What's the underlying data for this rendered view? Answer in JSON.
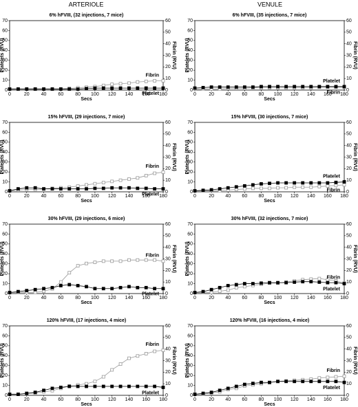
{
  "headers": [
    "ARTERIOLE",
    "VENULE"
  ],
  "chart_data": [
    {
      "type": "scatter",
      "title": "6% hFVIII, (32 injections, 7 mice)",
      "xlabel": "Secs",
      "ylabel": "Platelets (RVU)",
      "y2label": "Fibrin (RVU)",
      "x": [
        0,
        10,
        20,
        30,
        40,
        50,
        60,
        70,
        80,
        90,
        100,
        110,
        120,
        130,
        140,
        150,
        160,
        170,
        180
      ],
      "xlim": [
        0,
        180
      ],
      "xticks": [
        0,
        20,
        40,
        60,
        80,
        100,
        120,
        140,
        160,
        180
      ],
      "ylim": [
        0,
        70
      ],
      "yticks": [
        0,
        10,
        20,
        30,
        40,
        50,
        60,
        70
      ],
      "y2lim": [
        0,
        60
      ],
      "y2ticks": [
        0,
        10,
        20,
        30,
        40,
        50,
        60
      ],
      "series": [
        {
          "name": "Fibrin",
          "color": "#9a9a9a",
          "marker": "open",
          "axis": "y2",
          "values": [
            1,
            1,
            1,
            1,
            1,
            1,
            1,
            1.5,
            2,
            2.5,
            3,
            4,
            5,
            5.5,
            6,
            7,
            7.5,
            8,
            8
          ]
        },
        {
          "name": "Platelet",
          "color": "#000000",
          "marker": "filled",
          "values": [
            1,
            1,
            1,
            1,
            1,
            1,
            1,
            1,
            1,
            1.5,
            2,
            2,
            2,
            2,
            2,
            2,
            2,
            2,
            2
          ]
        }
      ]
    },
    {
      "type": "scatter",
      "title": "6% hFVIII, (35 injections, 7 mice)",
      "xlabel": "Secs",
      "ylabel": "Platelets (RVU)",
      "y2label": "Fibrin (RVU)",
      "x": [
        0,
        10,
        20,
        30,
        40,
        50,
        60,
        70,
        80,
        90,
        100,
        110,
        120,
        130,
        140,
        150,
        160,
        170,
        180
      ],
      "xlim": [
        0,
        180
      ],
      "xticks": [
        0,
        20,
        40,
        60,
        80,
        100,
        120,
        140,
        160,
        180
      ],
      "ylim": [
        0,
        70
      ],
      "yticks": [
        0,
        10,
        20,
        30,
        40,
        50,
        60,
        70
      ],
      "y2lim": [
        0,
        60
      ],
      "y2ticks": [
        0,
        10,
        20,
        30,
        40,
        50,
        60
      ],
      "series": [
        {
          "name": "Fibrin",
          "color": "#9a9a9a",
          "marker": "open",
          "axis": "y2",
          "values": [
            1,
            1,
            1,
            1,
            1.5,
            1.5,
            1.5,
            2,
            2,
            2,
            2,
            2,
            2,
            2,
            2,
            2.5,
            2.5,
            2.5,
            2.5
          ]
        },
        {
          "name": "Platelet",
          "color": "#000000",
          "marker": "filled",
          "values": [
            2,
            2.5,
            3,
            3,
            3,
            3,
            3,
            3,
            3.5,
            3.5,
            3.5,
            3.5,
            3.5,
            3.5,
            3.5,
            3.5,
            3.5,
            3.5,
            3.5
          ]
        }
      ]
    },
    {
      "type": "scatter",
      "title": "15% hFVIII, (29 injections, 7 mice)",
      "xlabel": "Secs",
      "ylabel": "Platelets (RVU)",
      "y2label": "Fibrin (RVU)",
      "x": [
        0,
        10,
        20,
        30,
        40,
        50,
        60,
        70,
        80,
        90,
        100,
        110,
        120,
        130,
        140,
        150,
        160,
        170,
        180
      ],
      "xlim": [
        0,
        180
      ],
      "xticks": [
        0,
        20,
        40,
        60,
        80,
        100,
        120,
        140,
        160,
        180
      ],
      "ylim": [
        0,
        70
      ],
      "yticks": [
        0,
        10,
        20,
        30,
        40,
        50,
        60,
        70
      ],
      "y2lim": [
        0,
        60
      ],
      "y2ticks": [
        0,
        10,
        20,
        30,
        40,
        50,
        60
      ],
      "series": [
        {
          "name": "Fibrin",
          "color": "#9a9a9a",
          "marker": "open",
          "axis": "y2",
          "values": [
            1,
            1.5,
            2,
            2,
            2.5,
            3,
            3.5,
            4,
            5,
            6,
            7,
            8,
            9,
            10,
            11,
            12,
            14,
            16,
            17
          ]
        },
        {
          "name": "Platelet",
          "color": "#000000",
          "marker": "filled",
          "values": [
            1,
            3,
            4,
            4,
            3,
            3,
            3,
            3,
            3,
            3,
            3.5,
            3.5,
            4,
            4,
            4,
            3.5,
            3.5,
            3,
            3
          ]
        }
      ]
    },
    {
      "type": "scatter",
      "title": "15% hFVIII, (30 injections, 7 mice)",
      "xlabel": "Secs",
      "ylabel": "Platelets (RVU)",
      "y2label": "Fibrin (RVU)",
      "x": [
        0,
        10,
        20,
        30,
        40,
        50,
        60,
        70,
        80,
        90,
        100,
        110,
        120,
        130,
        140,
        150,
        160,
        170,
        180
      ],
      "xlim": [
        0,
        180
      ],
      "xticks": [
        0,
        20,
        40,
        60,
        80,
        100,
        120,
        140,
        160,
        180
      ],
      "ylim": [
        0,
        70
      ],
      "yticks": [
        0,
        10,
        20,
        30,
        40,
        50,
        60,
        70
      ],
      "y2lim": [
        0,
        60
      ],
      "y2ticks": [
        0,
        10,
        20,
        30,
        40,
        50,
        60
      ],
      "series": [
        {
          "name": "Fibrin",
          "color": "#9a9a9a",
          "marker": "open",
          "axis": "y2",
          "values": [
            1,
            1,
            1,
            1,
            1.5,
            2,
            2.5,
            3,
            3,
            3,
            3.5,
            3.5,
            4,
            4,
            4,
            4.5,
            5,
            5.5,
            6
          ]
        },
        {
          "name": "Platelet",
          "color": "#000000",
          "marker": "filled",
          "values": [
            1,
            1.5,
            2,
            3,
            4,
            5,
            6,
            7,
            8,
            8.5,
            9,
            9,
            9,
            9,
            9,
            9,
            9,
            9.5,
            10
          ]
        }
      ]
    },
    {
      "type": "scatter",
      "title": "30% hFVIII, (29 injections, 6 mice)",
      "xlabel": "Secs",
      "ylabel": "Platelets (RVU)",
      "y2label": "Fibrin (RVU)",
      "x": [
        0,
        10,
        20,
        30,
        40,
        50,
        60,
        70,
        80,
        90,
        100,
        110,
        120,
        130,
        140,
        150,
        160,
        170,
        180
      ],
      "xlim": [
        0,
        180
      ],
      "xticks": [
        0,
        20,
        40,
        60,
        80,
        100,
        120,
        140,
        160,
        180
      ],
      "ylim": [
        0,
        70
      ],
      "yticks": [
        0,
        10,
        20,
        30,
        40,
        50,
        60,
        70
      ],
      "y2lim": [
        0,
        60
      ],
      "y2ticks": [
        0,
        10,
        20,
        30,
        40,
        50,
        60
      ],
      "series": [
        {
          "name": "Fibrin",
          "color": "#9a9a9a",
          "marker": "open",
          "axis": "y2",
          "values": [
            1,
            1,
            1,
            1,
            2,
            4,
            10,
            18,
            24,
            26,
            27,
            28,
            28,
            28,
            29,
            29,
            29,
            29,
            28
          ]
        },
        {
          "name": "Platelet",
          "color": "#000000",
          "marker": "filled",
          "values": [
            1,
            2,
            3,
            4,
            5,
            6,
            8,
            9,
            8,
            7,
            5,
            5,
            5,
            6,
            7,
            6,
            6,
            5,
            5
          ]
        }
      ]
    },
    {
      "type": "scatter",
      "title": "30% hFVIII, (32 injections, 7 mice)",
      "xlabel": "Secs",
      "ylabel": "Platelets (RVU)",
      "y2label": "Fibrin (RVU)",
      "x": [
        0,
        10,
        20,
        30,
        40,
        50,
        60,
        70,
        80,
        90,
        100,
        110,
        120,
        130,
        140,
        150,
        160,
        170,
        180
      ],
      "xlim": [
        0,
        180
      ],
      "xticks": [
        0,
        20,
        40,
        60,
        80,
        100,
        120,
        140,
        160,
        180
      ],
      "ylim": [
        0,
        70
      ],
      "yticks": [
        0,
        10,
        20,
        30,
        40,
        50,
        60,
        70
      ],
      "y2lim": [
        0,
        60
      ],
      "y2ticks": [
        0,
        10,
        20,
        30,
        40,
        50,
        60
      ],
      "series": [
        {
          "name": "Fibrin",
          "color": "#9a9a9a",
          "marker": "open",
          "axis": "y2",
          "values": [
            1,
            1,
            1,
            2,
            3,
            5,
            6,
            7,
            8,
            9,
            9,
            10,
            11,
            12,
            12.5,
            13,
            12,
            11,
            9
          ]
        },
        {
          "name": "Platelet",
          "color": "#000000",
          "marker": "filled",
          "values": [
            1,
            2,
            4,
            6,
            8,
            9,
            10,
            10,
            10.5,
            11,
            11,
            11,
            11.5,
            12,
            12,
            11.5,
            11,
            11,
            10
          ]
        }
      ]
    },
    {
      "type": "scatter",
      "title": "120% hFVIII, (17 injections, 4 mice)",
      "xlabel": "Secs",
      "ylabel": "Platelets (RVU)",
      "y2label": "Fibrin (RVU)",
      "x": [
        0,
        10,
        20,
        30,
        40,
        50,
        60,
        70,
        80,
        90,
        100,
        110,
        120,
        130,
        140,
        150,
        160,
        170,
        180
      ],
      "xlim": [
        0,
        180
      ],
      "xticks": [
        0,
        20,
        40,
        60,
        80,
        100,
        120,
        140,
        160,
        180
      ],
      "ylim": [
        0,
        70
      ],
      "yticks": [
        0,
        10,
        20,
        30,
        40,
        50,
        60,
        70
      ],
      "y2lim": [
        0,
        60
      ],
      "y2ticks": [
        0,
        10,
        20,
        30,
        40,
        50,
        60
      ],
      "series": [
        {
          "name": "Fibrin",
          "color": "#9a9a9a",
          "marker": "open",
          "axis": "y2",
          "values": [
            1,
            1,
            1.5,
            2,
            3,
            4,
            6,
            8,
            9,
            10,
            12,
            16,
            22,
            27,
            32,
            34,
            36,
            38,
            39
          ]
        },
        {
          "name": "Platelet",
          "color": "#000000",
          "marker": "filled",
          "values": [
            1,
            1,
            2,
            3,
            5,
            7,
            8,
            9,
            9,
            9,
            9,
            9,
            9,
            9,
            9,
            9,
            9,
            9,
            8
          ]
        }
      ]
    },
    {
      "type": "scatter",
      "title": "120% hFVIII, (16 injections, 4 mice)",
      "xlabel": "Secs",
      "ylabel": "Platelets (RVU)",
      "y2label": "Fibrin (RVU)",
      "x": [
        0,
        10,
        20,
        30,
        40,
        50,
        60,
        70,
        80,
        90,
        100,
        110,
        120,
        130,
        140,
        150,
        160,
        170,
        180
      ],
      "xlim": [
        0,
        180
      ],
      "xticks": [
        0,
        20,
        40,
        60,
        80,
        100,
        120,
        140,
        160,
        180
      ],
      "ylim": [
        0,
        70
      ],
      "yticks": [
        0,
        10,
        20,
        30,
        40,
        50,
        60,
        70
      ],
      "y2lim": [
        0,
        60
      ],
      "y2ticks": [
        0,
        10,
        20,
        30,
        40,
        50,
        60
      ],
      "series": [
        {
          "name": "Fibrin",
          "color": "#9a9a9a",
          "marker": "open",
          "axis": "y2",
          "values": [
            1,
            1,
            2,
            3,
            5,
            6,
            8,
            9,
            10,
            11,
            12,
            12.5,
            13,
            13.5,
            14,
            15,
            15.5,
            16,
            16.5
          ]
        },
        {
          "name": "Platelet",
          "color": "#000000",
          "marker": "filled",
          "values": [
            1,
            2,
            3,
            5,
            7,
            9,
            11,
            12,
            13,
            13,
            14,
            14,
            14,
            14,
            14,
            14,
            14,
            14,
            13
          ]
        }
      ]
    }
  ]
}
